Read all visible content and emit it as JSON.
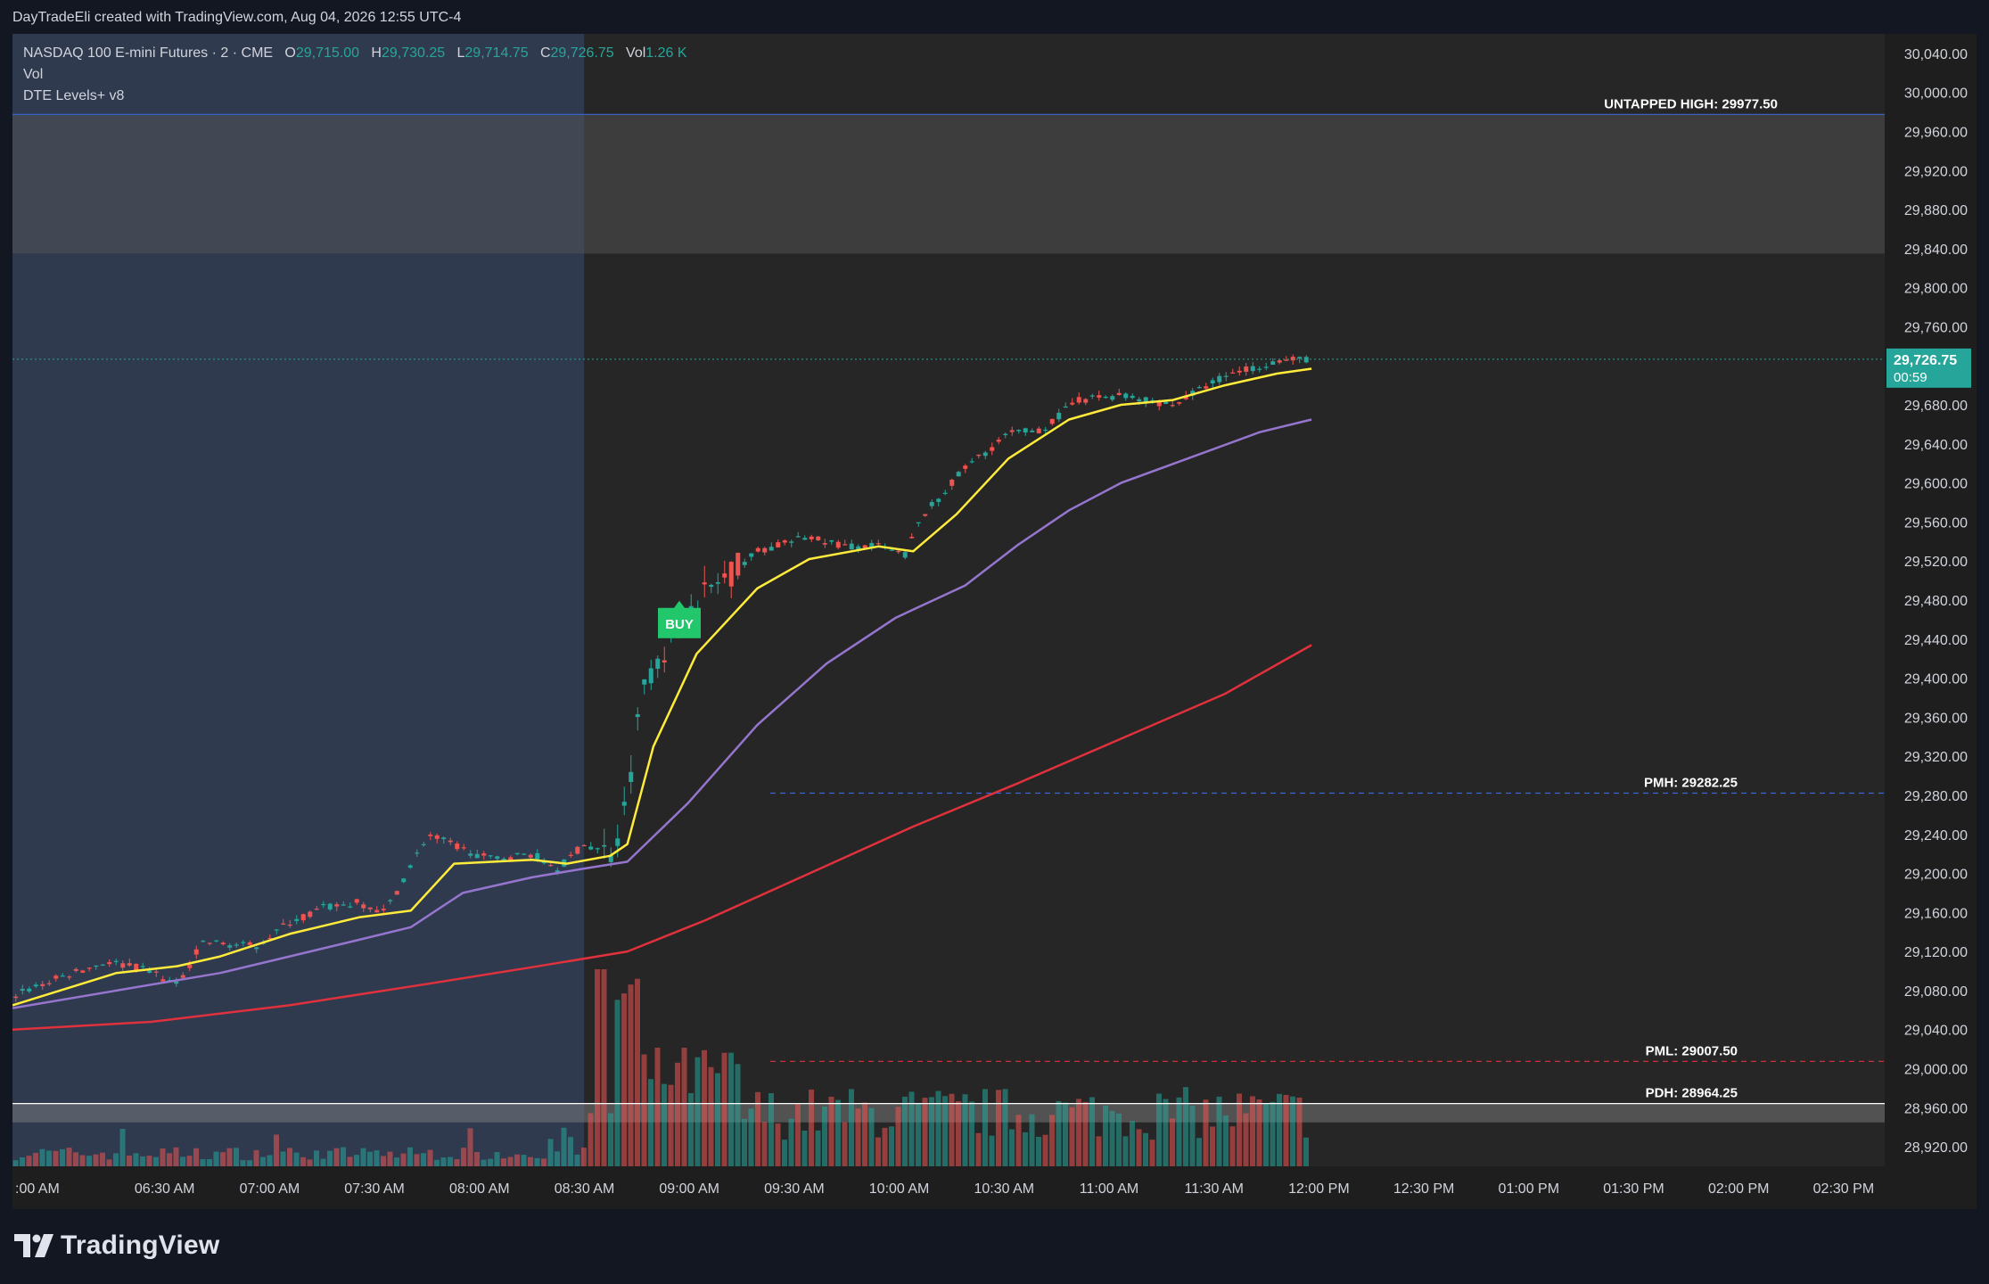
{
  "header": {
    "credit": "DayTradeEli created with TradingView.com, Aug 04, 2026 12:55 UTC-4"
  },
  "legend": {
    "symbol": "NASDAQ 100 E-mini Futures · 2 · CME",
    "ohlc": [
      {
        "k": "O",
        "v": "29,715.00"
      },
      {
        "k": "H",
        "v": "29,730.25"
      },
      {
        "k": "L",
        "v": "29,714.75"
      },
      {
        "k": "C",
        "v": "29,726.75"
      }
    ],
    "vol_label": "Vol",
    "vol_value": "1.26 K",
    "indicator_vol": "Vol",
    "indicator_levels": "DTE Levels+ v8"
  },
  "colors": {
    "up": "#26a69a",
    "down": "#ef5350",
    "ema_fast": "#ffeb3b",
    "ema_mid": "#9575cd",
    "ema_slow": "#e0313c",
    "premarket_bg": "#2f3a4e",
    "session_bg": "#262626",
    "level_pmh": "#3a66d4",
    "level_pml": "#e0313c",
    "buy": "#22c76b"
  },
  "branding": {
    "logo_text": "TradingView"
  },
  "chart_data": {
    "type": "candlestick",
    "symbol": "NASDAQ 100 E-mini Futures",
    "interval": "2",
    "exchange": "CME",
    "price_axis_ticks": [
      "30,040.00",
      "30,000.00",
      "29,960.00",
      "29,920.00",
      "29,880.00",
      "29,840.00",
      "29,800.00",
      "29,760.00",
      "29,680.00",
      "29,640.00",
      "29,600.00",
      "29,560.00",
      "29,520.00",
      "29,480.00",
      "29,440.00",
      "29,400.00",
      "29,360.00",
      "29,320.00",
      "29,280.00",
      "29,240.00",
      "29,200.00",
      "29,160.00",
      "29,120.00",
      "29,080.00",
      "29,040.00",
      "29,000.00",
      "28,960.00",
      "28,920.00"
    ],
    "time_axis_ticks": [
      ":00 AM",
      "06:30 AM",
      "07:00 AM",
      "07:30 AM",
      "08:00 AM",
      "08:30 AM",
      "09:00 AM",
      "09:30 AM",
      "10:00 AM",
      "10:30 AM",
      "11:00 AM",
      "11:30 AM",
      "12:00 PM",
      "12:30 PM",
      "01:00 PM",
      "01:30 PM",
      "02:00 PM",
      "02:30 PM"
    ],
    "ylim": [
      28900,
      30060
    ],
    "last_price": {
      "value": 29726.75,
      "label": "29,726.75",
      "countdown": "00:59"
    },
    "levels": [
      {
        "label": "UNTAPPED HIGH: 29977.50",
        "value": 29977.5,
        "style": "solid",
        "color": "#3a66d4"
      },
      {
        "label": "PMH: 29282.25",
        "value": 29282.25,
        "style": "dashed",
        "color": "#3a66d4"
      },
      {
        "label": "PML: 29007.50",
        "value": 29007.5,
        "style": "dashed",
        "color": "#e0313c"
      },
      {
        "label": "PDH: 28964.25",
        "value": 28964.25,
        "style": "solid",
        "color": "#ffffff"
      }
    ],
    "zones": [
      {
        "from": 29835,
        "to": 29977.5,
        "color": "#5a5a5a"
      },
      {
        "from": 28945,
        "to": 28964.25,
        "color": "#8a8a8a"
      }
    ],
    "signals": [
      {
        "label": "BUY",
        "time_min": 385,
        "price": 29472
      }
    ],
    "session_split_min": 330,
    "time_range_min": [
      0,
      1050
    ],
    "price_path": [
      [
        0,
        29075
      ],
      [
        30,
        29095
      ],
      [
        55,
        29110
      ],
      [
        80,
        29100
      ],
      [
        95,
        29085
      ],
      [
        110,
        29130
      ],
      [
        140,
        29125
      ],
      [
        160,
        29150
      ],
      [
        180,
        29165
      ],
      [
        200,
        29170
      ],
      [
        215,
        29160
      ],
      [
        240,
        29240
      ],
      [
        260,
        29225
      ],
      [
        275,
        29215
      ],
      [
        300,
        29220
      ],
      [
        315,
        29205
      ],
      [
        330,
        29230
      ],
      [
        345,
        29220
      ],
      [
        352,
        29250
      ],
      [
        365,
        29400
      ],
      [
        395,
        29480
      ],
      [
        430,
        29530
      ],
      [
        460,
        29545
      ],
      [
        480,
        29535
      ],
      [
        500,
        29535
      ],
      [
        515,
        29525
      ],
      [
        525,
        29565
      ],
      [
        550,
        29615
      ],
      [
        575,
        29650
      ],
      [
        595,
        29655
      ],
      [
        615,
        29685
      ],
      [
        640,
        29690
      ],
      [
        670,
        29680
      ],
      [
        700,
        29710
      ],
      [
        730,
        29725
      ],
      [
        750,
        29727
      ]
    ],
    "ema_fast_path": [
      [
        0,
        29065
      ],
      [
        60,
        29098
      ],
      [
        95,
        29105
      ],
      [
        120,
        29115
      ],
      [
        160,
        29138
      ],
      [
        200,
        29155
      ],
      [
        230,
        29162
      ],
      [
        255,
        29210
      ],
      [
        300,
        29214
      ],
      [
        320,
        29210
      ],
      [
        345,
        29218
      ],
      [
        355,
        29230
      ],
      [
        370,
        29330
      ],
      [
        395,
        29425
      ],
      [
        430,
        29492
      ],
      [
        460,
        29522
      ],
      [
        500,
        29535
      ],
      [
        520,
        29530
      ],
      [
        545,
        29568
      ],
      [
        575,
        29625
      ],
      [
        610,
        29665
      ],
      [
        640,
        29680
      ],
      [
        670,
        29685
      ],
      [
        700,
        29700
      ],
      [
        730,
        29712
      ],
      [
        750,
        29717
      ]
    ],
    "ema_mid_path": [
      [
        0,
        29062
      ],
      [
        60,
        29080
      ],
      [
        120,
        29098
      ],
      [
        160,
        29115
      ],
      [
        200,
        29132
      ],
      [
        230,
        29145
      ],
      [
        260,
        29180
      ],
      [
        300,
        29196
      ],
      [
        330,
        29205
      ],
      [
        355,
        29212
      ],
      [
        390,
        29272
      ],
      [
        430,
        29352
      ],
      [
        470,
        29415
      ],
      [
        510,
        29462
      ],
      [
        550,
        29495
      ],
      [
        580,
        29536
      ],
      [
        610,
        29572
      ],
      [
        640,
        29600
      ],
      [
        680,
        29626
      ],
      [
        720,
        29652
      ],
      [
        750,
        29665
      ]
    ],
    "ema_slow_path": [
      [
        0,
        29040
      ],
      [
        80,
        29048
      ],
      [
        160,
        29065
      ],
      [
        240,
        29087
      ],
      [
        300,
        29104
      ],
      [
        355,
        29120
      ],
      [
        400,
        29152
      ],
      [
        460,
        29200
      ],
      [
        520,
        29248
      ],
      [
        580,
        29292
      ],
      [
        640,
        29338
      ],
      [
        700,
        29384
      ],
      [
        750,
        29434
      ]
    ]
  }
}
